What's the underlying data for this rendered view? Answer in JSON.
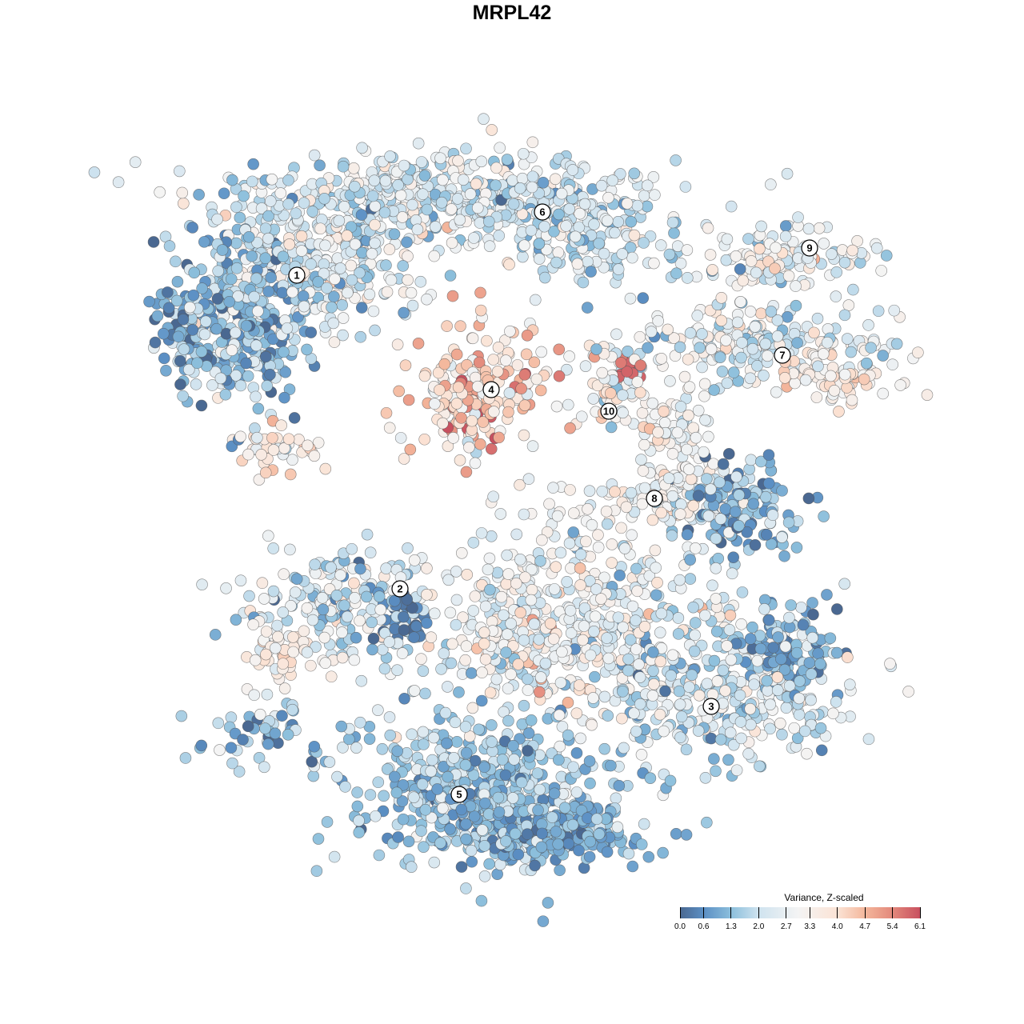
{
  "chart_data": {
    "type": "scatter",
    "title": "MRPL42",
    "xlabel": "",
    "ylabel": "",
    "xlim": [
      -64,
      64
    ],
    "ylim": [
      -64,
      64
    ],
    "grid": false,
    "legend": {
      "title": "Variance, Z-scaled",
      "placement": "bottom-right",
      "range": [
        0.0,
        6.1
      ],
      "ticks": [
        "0.0",
        "0.6",
        "1.3",
        "2.0",
        "2.7",
        "3.3",
        "4.0",
        "4.7",
        "5.4",
        "6.1"
      ],
      "tick_values": [
        0.0,
        0.6,
        1.3,
        2.0,
        2.7,
        3.3,
        4.0,
        4.7,
        5.4,
        6.1
      ],
      "colors": [
        "#4a6891",
        "#5b8fc4",
        "#8cbfdc",
        "#cfe3ef",
        "#f4f4f4",
        "#fbe3d5",
        "#f4b79c",
        "#e3887b",
        "#c8505f"
      ],
      "color_stops": [
        0.0,
        0.6,
        1.3,
        2.0,
        3.0,
        4.0,
        4.7,
        5.4,
        6.1
      ]
    },
    "point_groups_note": "points summarized as groups: center x, center y, spread x, spread y, count, mean value, value sd (embedding units)",
    "point_groups": [
      {
        "cluster": "1",
        "c": [
          -34,
          24
        ],
        "s": [
          5,
          6
        ],
        "n": 350,
        "mean": 1.3,
        "sd": 0.8
      },
      {
        "cluster": "1",
        "c": [
          -24,
          31
        ],
        "s": [
          6,
          4
        ],
        "n": 250,
        "mean": 2.4,
        "sd": 0.8
      },
      {
        "cluster": "1",
        "c": [
          -29,
          8
        ],
        "s": [
          2.5,
          1.5
        ],
        "n": 40,
        "mean": 3.6,
        "sd": 0.5
      },
      {
        "cluster": "1",
        "c": [
          -41,
          24
        ],
        "s": [
          1.5,
          2.5
        ],
        "n": 40,
        "mean": 0.9,
        "sd": 0.6
      },
      {
        "cluster": "6",
        "c": [
          -8,
          39
        ],
        "s": [
          13,
          3
        ],
        "n": 500,
        "mean": 2.3,
        "sd": 0.7
      },
      {
        "cluster": "6",
        "c": [
          8,
          34
        ],
        "s": [
          6,
          3
        ],
        "n": 150,
        "mean": 2.0,
        "sd": 0.8
      },
      {
        "cluster": "9",
        "c": [
          34,
          32
        ],
        "s": [
          6,
          2
        ],
        "n": 120,
        "mean": 2.8,
        "sd": 0.7
      },
      {
        "cluster": "7",
        "c": [
          31,
          21
        ],
        "s": [
          8,
          2.5
        ],
        "n": 200,
        "mean": 2.4,
        "sd": 0.8
      },
      {
        "cluster": "7",
        "c": [
          41,
          17
        ],
        "s": [
          3.5,
          2
        ],
        "n": 80,
        "mean": 3.4,
        "sd": 0.5
      },
      {
        "cluster": "4",
        "c": [
          -5,
          15
        ],
        "s": [
          4.5,
          4
        ],
        "n": 200,
        "mean": 4.1,
        "sd": 0.9
      },
      {
        "cluster": "10",
        "c": [
          13,
          16
        ],
        "s": [
          2.5,
          3
        ],
        "n": 70,
        "mean": 2.8,
        "sd": 1.0
      },
      {
        "cluster": "10",
        "c": [
          14.5,
          17.5
        ],
        "s": [
          1.2,
          1.2
        ],
        "n": 20,
        "mean": 5.8,
        "sd": 0.2
      },
      {
        "cluster": "8",
        "c": [
          21,
          8
        ],
        "s": [
          2.5,
          4
        ],
        "n": 100,
        "mean": 3.0,
        "sd": 0.6
      },
      {
        "cluster": "8",
        "c": [
          16,
          1
        ],
        "s": [
          6,
          2
        ],
        "n": 80,
        "mean": 2.9,
        "sd": 0.6
      },
      {
        "cluster": "8",
        "c": [
          28,
          0
        ],
        "s": [
          4,
          3
        ],
        "n": 150,
        "mean": 1.2,
        "sd": 0.7
      },
      {
        "cluster": "2",
        "c": [
          -22,
          -12
        ],
        "s": [
          6,
          4
        ],
        "n": 200,
        "mean": 2.2,
        "sd": 0.8
      },
      {
        "cluster": "2",
        "c": [
          -13,
          -13
        ],
        "s": [
          1.5,
          1.5
        ],
        "n": 40,
        "mean": 0.3,
        "sd": 0.3
      },
      {
        "cluster": "2",
        "c": [
          -29,
          -17.5
        ],
        "s": [
          2,
          1.5
        ],
        "n": 40,
        "mean": 3.6,
        "sd": 0.4
      },
      {
        "cluster": "2",
        "c": [
          -31,
          -28
        ],
        "s": [
          4,
          2
        ],
        "n": 50,
        "mean": 1.2,
        "sd": 0.7
      },
      {
        "cluster": "3",
        "c": [
          6,
          -14
        ],
        "s": [
          9,
          6
        ],
        "n": 500,
        "mean": 2.8,
        "sd": 0.8
      },
      {
        "cluster": "3",
        "c": [
          26,
          -22
        ],
        "s": [
          8,
          5
        ],
        "n": 350,
        "mean": 2.1,
        "sd": 0.8
      },
      {
        "cluster": "3",
        "c": [
          34,
          -17
        ],
        "s": [
          3,
          3
        ],
        "n": 100,
        "mean": 0.9,
        "sd": 0.5
      },
      {
        "cluster": "5",
        "c": [
          -4,
          -34
        ],
        "s": [
          8,
          5
        ],
        "n": 500,
        "mean": 1.6,
        "sd": 0.6
      },
      {
        "cluster": "5",
        "c": [
          4,
          -40
        ],
        "s": [
          6,
          2
        ],
        "n": 250,
        "mean": 1.0,
        "sd": 0.5
      }
    ],
    "cluster_labels": [
      {
        "label": "1",
        "x": -26.9,
        "y": 29.6
      },
      {
        "label": "2",
        "x": -14.0,
        "y": -9.6
      },
      {
        "label": "3",
        "x": 24.9,
        "y": -24.3
      },
      {
        "label": "4",
        "x": -2.6,
        "y": 15.3
      },
      {
        "label": "5",
        "x": -6.6,
        "y": -35.3
      },
      {
        "label": "6",
        "x": 3.8,
        "y": 37.5
      },
      {
        "label": "7",
        "x": 33.8,
        "y": 19.6
      },
      {
        "label": "8",
        "x": 17.8,
        "y": 1.7
      },
      {
        "label": "9",
        "x": 37.2,
        "y": 33.0
      },
      {
        "label": "10",
        "x": 12.1,
        "y": 12.6
      }
    ]
  }
}
